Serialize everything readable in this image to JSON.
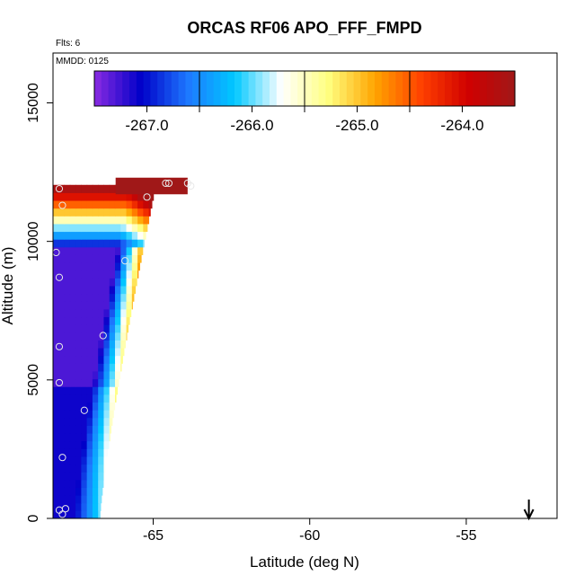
{
  "chart_data": {
    "type": "heatmap",
    "title": "ORCAS RF06 APO_FFF_FMPD",
    "flights_label": "Flts: 6",
    "date_label": "MMDD: 0125",
    "xlabel": "Latitude (deg N)",
    "ylabel": "Altitude (m)",
    "xlim": [
      -68.2,
      -52.1
    ],
    "ylim": [
      0,
      16800
    ],
    "x_ticks": [
      -65,
      -60,
      -55
    ],
    "x_tick_labels": [
      "-65",
      "-60",
      "-55"
    ],
    "y_ticks": [
      0,
      5000,
      10000,
      15000
    ],
    "y_tick_labels": [
      "0",
      "5000",
      "10000",
      "15000"
    ],
    "colorbar": {
      "min": -267.5,
      "max": -263.5,
      "ticks": [
        -267.0,
        -266.0,
        -265.0,
        -264.0
      ],
      "tick_labels": [
        "-267.0",
        "-266.0",
        "-265.0",
        "-264.0"
      ],
      "colors": [
        "#8a2be2",
        "#0000c8",
        "#1e78ff",
        "#00c8ff",
        "#ffffff",
        "#ffff80",
        "#ffa500",
        "#ff4000",
        "#d00000",
        "#a01818"
      ]
    },
    "curtain": {
      "x_edge_bottom": -66.7,
      "x_edge_top": -64.9,
      "y_top": 12000,
      "top_band": {
        "x_from": -66.2,
        "x_to": -63.9,
        "alt_from": 11700,
        "alt_to": 12300,
        "value": -263.4
      }
    },
    "observations": [
      {
        "lat": -68.0,
        "alt": 11900
      },
      {
        "lat": -67.9,
        "alt": 11300
      },
      {
        "lat": -68.1,
        "alt": 9600
      },
      {
        "lat": -68.0,
        "alt": 8700
      },
      {
        "lat": -68.0,
        "alt": 6200
      },
      {
        "lat": -68.0,
        "alt": 4900
      },
      {
        "lat": -67.2,
        "alt": 3900
      },
      {
        "lat": -67.9,
        "alt": 2200
      },
      {
        "lat": -68.0,
        "alt": 300
      },
      {
        "lat": -67.8,
        "alt": 350
      },
      {
        "lat": -67.9,
        "alt": 150
      },
      {
        "lat": -66.6,
        "alt": 6600
      },
      {
        "lat": -65.9,
        "alt": 9300
      },
      {
        "lat": -65.2,
        "alt": 11600
      },
      {
        "lat": -64.6,
        "alt": 12100
      },
      {
        "lat": -64.5,
        "alt": 12100
      },
      {
        "lat": -63.9,
        "alt": 12100
      },
      {
        "lat": -63.8,
        "alt": 12000
      }
    ],
    "arrow_lat": -53.0
  }
}
